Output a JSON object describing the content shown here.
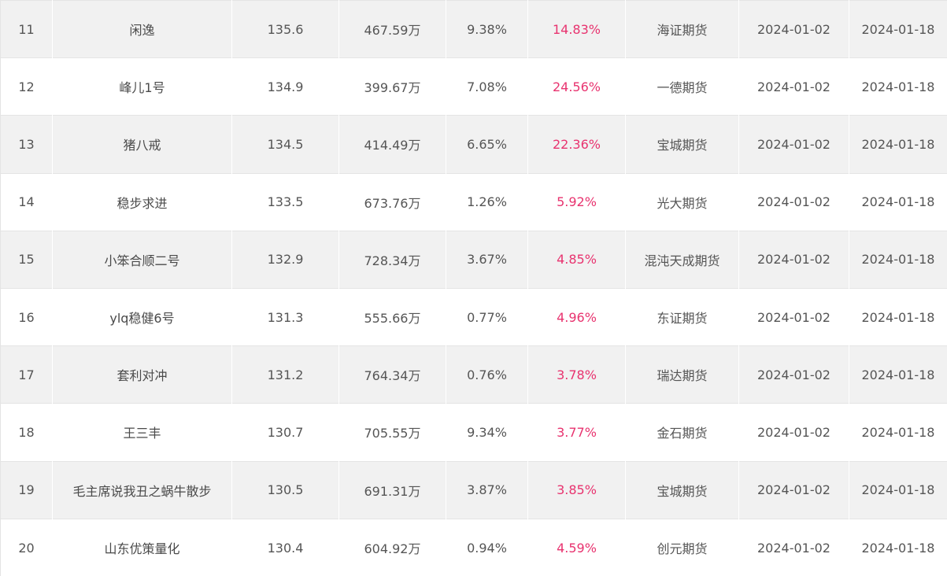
{
  "colors": {
    "row_odd": "#f1f1f1",
    "row_even": "#ffffff",
    "highlight_pct": "#e8336f",
    "text": "#555555"
  },
  "rows": [
    {
      "rank": "11",
      "name": "闲逸",
      "score": "135.6",
      "equity": "467.59万",
      "ret1": "9.38%",
      "ret2": "14.83%",
      "broker": "海证期货",
      "start": "2024-01-02",
      "end": "2024-01-18"
    },
    {
      "rank": "12",
      "name": "峰儿1号",
      "score": "134.9",
      "equity": "399.67万",
      "ret1": "7.08%",
      "ret2": "24.56%",
      "broker": "一德期货",
      "start": "2024-01-02",
      "end": "2024-01-18"
    },
    {
      "rank": "13",
      "name": "猪八戒",
      "score": "134.5",
      "equity": "414.49万",
      "ret1": "6.65%",
      "ret2": "22.36%",
      "broker": "宝城期货",
      "start": "2024-01-02",
      "end": "2024-01-18"
    },
    {
      "rank": "14",
      "name": "稳步求进",
      "score": "133.5",
      "equity": "673.76万",
      "ret1": "1.26%",
      "ret2": "5.92%",
      "broker": "光大期货",
      "start": "2024-01-02",
      "end": "2024-01-18"
    },
    {
      "rank": "15",
      "name": "小笨合顺二号",
      "score": "132.9",
      "equity": "728.34万",
      "ret1": "3.67%",
      "ret2": "4.85%",
      "broker": "混沌天成期货",
      "start": "2024-01-02",
      "end": "2024-01-18"
    },
    {
      "rank": "16",
      "name": "ylq稳健6号",
      "score": "131.3",
      "equity": "555.66万",
      "ret1": "0.77%",
      "ret2": "4.96%",
      "broker": "东证期货",
      "start": "2024-01-02",
      "end": "2024-01-18"
    },
    {
      "rank": "17",
      "name": "套利对冲",
      "score": "131.2",
      "equity": "764.34万",
      "ret1": "0.76%",
      "ret2": "3.78%",
      "broker": "瑞达期货",
      "start": "2024-01-02",
      "end": "2024-01-18"
    },
    {
      "rank": "18",
      "name": "王三丰",
      "score": "130.7",
      "equity": "705.55万",
      "ret1": "9.34%",
      "ret2": "3.77%",
      "broker": "金石期货",
      "start": "2024-01-02",
      "end": "2024-01-18"
    },
    {
      "rank": "19",
      "name": "毛主席说我丑之蜗牛散步",
      "score": "130.5",
      "equity": "691.31万",
      "ret1": "3.87%",
      "ret2": "3.85%",
      "broker": "宝城期货",
      "start": "2024-01-02",
      "end": "2024-01-18"
    },
    {
      "rank": "20",
      "name": "山东优策量化",
      "score": "130.4",
      "equity": "604.92万",
      "ret1": "0.94%",
      "ret2": "4.59%",
      "broker": "创元期货",
      "start": "2024-01-02",
      "end": "2024-01-18"
    }
  ]
}
